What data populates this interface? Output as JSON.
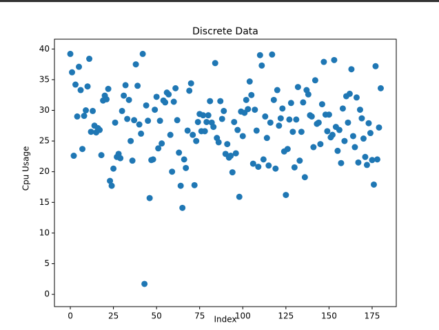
{
  "chart_data": {
    "type": "scatter",
    "title": "Discrete Data",
    "x_label": "Index",
    "y_label": "Cpu Usage",
    "color": "#1f77b4",
    "x": [
      0,
      1,
      2,
      3,
      4,
      5,
      6,
      7,
      8,
      9,
      10,
      11,
      12,
      13,
      14,
      15,
      16,
      17,
      18,
      19,
      20,
      21,
      22,
      23,
      24,
      25,
      26,
      27,
      28,
      29,
      30,
      31,
      32,
      33,
      34,
      35,
      36,
      37,
      38,
      39,
      40,
      41,
      42,
      43,
      44,
      45,
      46,
      47,
      48,
      49,
      50,
      51,
      52,
      53,
      54,
      55,
      56,
      57,
      58,
      59,
      60,
      61,
      62,
      63,
      64,
      65,
      66,
      67,
      68,
      69,
      70,
      71,
      72,
      73,
      74,
      75,
      76,
      77,
      78,
      79,
      80,
      81,
      82,
      83,
      84,
      85,
      86,
      87,
      88,
      89,
      90,
      91,
      92,
      93,
      94,
      95,
      96,
      97,
      98,
      99,
      100,
      101,
      102,
      103,
      104,
      105,
      106,
      107,
      108,
      109,
      110,
      111,
      112,
      113,
      114,
      115,
      116,
      117,
      118,
      119,
      120,
      121,
      122,
      123,
      124,
      125,
      126,
      127,
      128,
      129,
      130,
      131,
      132,
      133,
      134,
      135,
      136,
      137,
      138,
      139,
      140,
      141,
      142,
      143,
      144,
      145,
      146,
      147,
      148,
      149,
      150,
      151,
      152,
      153,
      154,
      155,
      156,
      157,
      158,
      159,
      160,
      161,
      162,
      163,
      164,
      165,
      166,
      167,
      168,
      169,
      170,
      171,
      172,
      173,
      174,
      175,
      176,
      177,
      178,
      179,
      180
    ],
    "values": [
      39.2,
      36.2,
      22.6,
      34.2,
      29.0,
      37.1,
      33.3,
      23.7,
      29.1,
      30.0,
      33.9,
      38.4,
      26.5,
      29.9,
      27.5,
      26.4,
      27.1,
      26.8,
      22.7,
      31.6,
      32.4,
      31.8,
      33.5,
      18.5,
      17.7,
      20.5,
      28.0,
      22.4,
      22.9,
      22.2,
      29.9,
      32.4,
      34.1,
      28.6,
      31.7,
      25.0,
      21.8,
      28.4,
      37.5,
      34.0,
      27.7,
      26.2,
      39.2,
      1.7,
      30.8,
      28.3,
      15.7,
      21.9,
      22.0,
      30.1,
      32.2,
      23.8,
      28.3,
      24.6,
      31.6,
      31.3,
      32.9,
      32.6,
      26.0,
      20.0,
      31.4,
      33.6,
      28.4,
      23.1,
      17.7,
      14.1,
      22.0,
      20.6,
      26.7,
      33.2,
      34.4,
      26.0,
      17.8,
      25.0,
      28.1,
      29.4,
      26.6,
      29.2,
      26.6,
      28.1,
      29.2,
      31.5,
      28.0,
      27.3,
      37.7,
      25.5,
      24.8,
      31.5,
      28.6,
      29.9,
      22.9,
      24.5,
      22.3,
      22.6,
      19.9,
      28.1,
      23.0,
      26.8,
      15.9,
      29.8,
      25.8,
      29.6,
      31.7,
      30.2,
      34.7,
      32.5,
      21.3,
      30.1,
      26.7,
      20.8,
      39.0,
      37.3,
      22.0,
      29.0,
      25.5,
      21.0,
      28.0,
      39.1,
      31.7,
      20.5,
      33.3,
      27.5,
      28.7,
      30.3,
      23.3,
      16.2,
      23.7,
      28.5,
      31.2,
      26.5,
      20.7,
      28.5,
      33.8,
      21.8,
      26.5,
      31.3,
      19.1,
      33.3,
      32.6,
      29.2,
      29.0,
      24.0,
      34.9,
      27.8,
      28.0,
      24.5,
      31.0,
      37.9,
      29.3,
      26.6,
      29.3,
      25.6,
      26.0,
      38.2,
      27.3,
      23.4,
      26.8,
      21.4,
      30.3,
      25.0,
      32.3,
      28.0,
      32.7,
      36.7,
      25.8,
      24.0,
      32.1,
      21.5,
      30.1,
      28.7,
      25.4,
      22.4,
      21.1,
      27.9,
      26.3,
      21.9,
      17.9,
      37.2,
      22.0,
      27.2,
      33.6
    ],
    "xlim": [
      -9.2,
      189
    ],
    "ylim": [
      -2,
      41.6
    ],
    "xticks": [
      0,
      25,
      50,
      75,
      100,
      125,
      150,
      175
    ],
    "yticks": [
      0,
      5,
      10,
      15,
      20,
      25,
      30,
      35,
      40
    ]
  }
}
